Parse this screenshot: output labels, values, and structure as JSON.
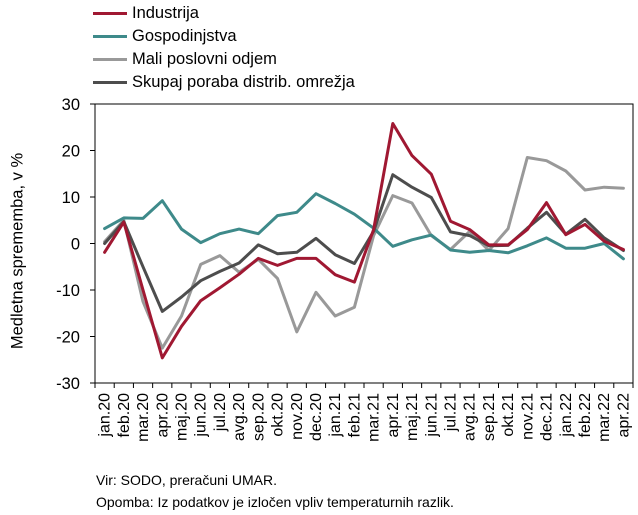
{
  "chart_data": {
    "type": "line",
    "ylabel": "Medletna sprememba, v %",
    "ylim": [
      -30,
      30
    ],
    "yticks": [
      30,
      20,
      10,
      0,
      -10,
      -20,
      -30
    ],
    "categories": [
      "jan.20",
      "feb.20",
      "mar.20",
      "apr.20",
      "maj.20",
      "jun.20",
      "jul.20",
      "avg.20",
      "sep.20",
      "okt.20",
      "nov.20",
      "dec.20",
      "jan.21",
      "feb.21",
      "mar.21",
      "apr.21",
      "maj.21",
      "jun.21",
      "jul.21",
      "avg.21",
      "sep.21",
      "okt.21",
      "nov.21",
      "dec.21",
      "jan.22",
      "feb.22",
      "mar.22",
      "apr.22"
    ],
    "legend_position": "top-left",
    "grid": false,
    "series": [
      {
        "name": "Industrija",
        "color": "#a01832",
        "values": [
          -1.9,
          4.6,
          -10,
          -24.6,
          -17.8,
          -12.3,
          -9.5,
          -6.6,
          -3.2,
          -4.7,
          -3.2,
          -3.2,
          -6.7,
          -8.3,
          3,
          25.8,
          18.9,
          14.9,
          4.8,
          3,
          -0.3,
          -0.3,
          3,
          8.8,
          1.9,
          4.1,
          0.5,
          -1.3
        ]
      },
      {
        "name": "Gospodinjstva",
        "color": "#3e8a8a",
        "values": [
          3.2,
          5.5,
          5.4,
          9.2,
          3.1,
          0.2,
          2.1,
          3.1,
          2.1,
          6,
          6.7,
          10.7,
          8.6,
          6.3,
          3.3,
          -0.6,
          0.8,
          1.8,
          -1.4,
          -1.9,
          -1.5,
          -2,
          -0.5,
          1.2,
          -1,
          -1,
          0,
          -3.3
        ]
      },
      {
        "name": "Mali poslovni odjem",
        "color": "#999999",
        "values": [
          0.4,
          5,
          -12.5,
          -22.5,
          -15.6,
          -4.5,
          -2.6,
          -6.2,
          -3.4,
          -7.5,
          -19,
          -10.5,
          -15.6,
          -13.7,
          1.7,
          10.3,
          8.7,
          1.7,
          -1.3,
          2.6,
          -1.5,
          3.2,
          18.5,
          17.8,
          15.6,
          11.5,
          12.1,
          11.9
        ]
      },
      {
        "name": "Skupaj poraba distrib. omrežja",
        "color": "#4d4d4d",
        "values": [
          0,
          4.7,
          -5,
          -14.6,
          -11.5,
          -8,
          -6,
          -4.2,
          -0.3,
          -2.2,
          -1.9,
          1.1,
          -2.4,
          -4.3,
          2.6,
          14.8,
          12.1,
          9.9,
          2.5,
          1.7,
          -0.5,
          -0.4,
          3.3,
          6.7,
          2,
          5.2,
          1.2,
          -1.5
        ]
      }
    ]
  },
  "notes": {
    "source": "Vir: SODO, preračuni UMAR.",
    "remark": "Opomba: Iz podatkov je izločen vpliv temperaturnih razlik."
  }
}
